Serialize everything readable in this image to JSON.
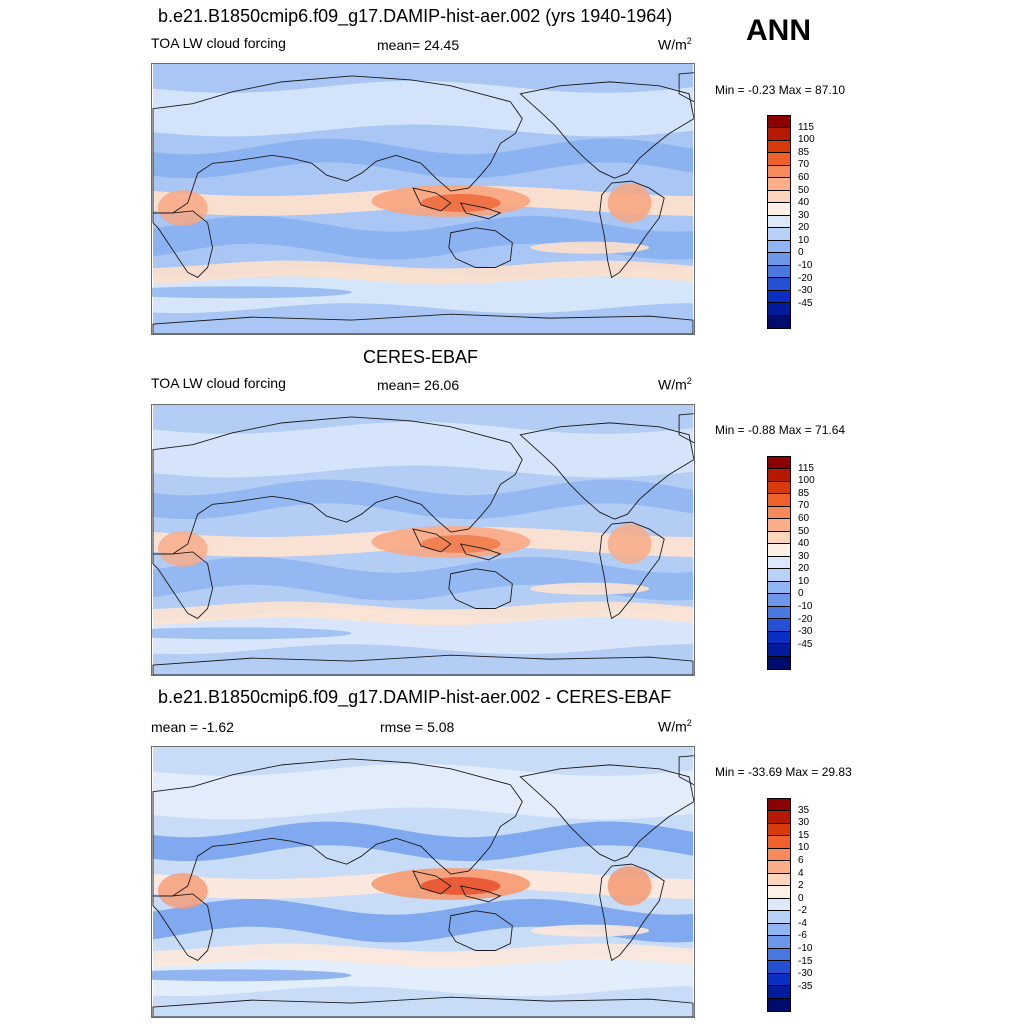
{
  "season": "ANN",
  "panels": [
    {
      "title": "b.e21.B1850cmip6.f09_g17.DAMIP-hist-aer.002 (yrs 1940-1964)",
      "left_label": "TOA LW cloud forcing",
      "center_label": "mean=  24.45",
      "units_base": "W/m",
      "units_exp": "2",
      "minmax": "Min =  -0.23 Max =  87.10",
      "levels": [
        "115",
        "100",
        "85",
        "70",
        "60",
        "50",
        "40",
        "30",
        "20",
        "10",
        "0",
        "-10",
        "-20",
        "-30",
        "-45"
      ],
      "colors": [
        "#8b0000",
        "#b51a00",
        "#d93a0a",
        "#f0602a",
        "#f78a5a",
        "#fbae88",
        "#fdd4bc",
        "#fdf0e4",
        "#dde9fb",
        "#b7d1f8",
        "#8fb5f2",
        "#6d98ea",
        "#4a78e0",
        "#2550d4",
        "#0a2ec4",
        "#001c9c",
        "#000b6e"
      ],
      "map_palette": {
        "ocean_bg": "#a9c6f4",
        "cool": "#85aef0",
        "mid": "#d9e8fb",
        "warm": "#fde0cc",
        "hot": "#f8a47e",
        "hotter": "#ef6a3a"
      }
    },
    {
      "title": "CERES-EBAF",
      "left_label": "TOA LW cloud forcing",
      "center_label": "mean=  26.06",
      "units_base": "W/m",
      "units_exp": "2",
      "minmax": "Min =  -0.88 Max =  71.64",
      "levels": [
        "115",
        "100",
        "85",
        "70",
        "60",
        "50",
        "40",
        "30",
        "20",
        "10",
        "0",
        "-10",
        "-20",
        "-30",
        "-45"
      ],
      "colors": [
        "#8b0000",
        "#b51a00",
        "#d93a0a",
        "#f0602a",
        "#f78a5a",
        "#fbae88",
        "#fdd4bc",
        "#fdf0e4",
        "#dde9fb",
        "#b7d1f8",
        "#8fb5f2",
        "#6d98ea",
        "#4a78e0",
        "#2550d4",
        "#0a2ec4",
        "#001c9c",
        "#000b6e"
      ],
      "map_palette": {
        "ocean_bg": "#b3cdf5",
        "cool": "#8cb3f0",
        "mid": "#dbe8fb",
        "warm": "#fde3d2",
        "hot": "#f8aa86",
        "hotter": "#f07a4a"
      }
    },
    {
      "title": "b.e21.B1850cmip6.f09_g17.DAMIP-hist-aer.002 - CERES-EBAF",
      "left_label": "mean =  -1.62",
      "center_label": "rmse =   5.08",
      "units_base": "W/m",
      "units_exp": "2",
      "minmax": "Min = -33.69 Max =  29.83",
      "levels": [
        "35",
        "30",
        "15",
        "10",
        "6",
        "4",
        "2",
        "0",
        "-2",
        "-4",
        "-6",
        "-10",
        "-15",
        "-30",
        "-35"
      ],
      "colors": [
        "#8b0000",
        "#b51a00",
        "#d93a0a",
        "#f0602a",
        "#f78a5a",
        "#fbae88",
        "#fdd4bc",
        "#fdf0e4",
        "#dde9fb",
        "#b7d1f8",
        "#8fb5f2",
        "#6d98ea",
        "#4a78e0",
        "#2550d4",
        "#0a2ec4",
        "#001c9c",
        "#000b6e"
      ],
      "map_palette": {
        "ocean_bg": "#c8dcf8",
        "cool": "#6f9cec",
        "mid": "#e6effc",
        "warm": "#fde8dc",
        "hot": "#f59a72",
        "hotter": "#e8502a"
      }
    }
  ]
}
